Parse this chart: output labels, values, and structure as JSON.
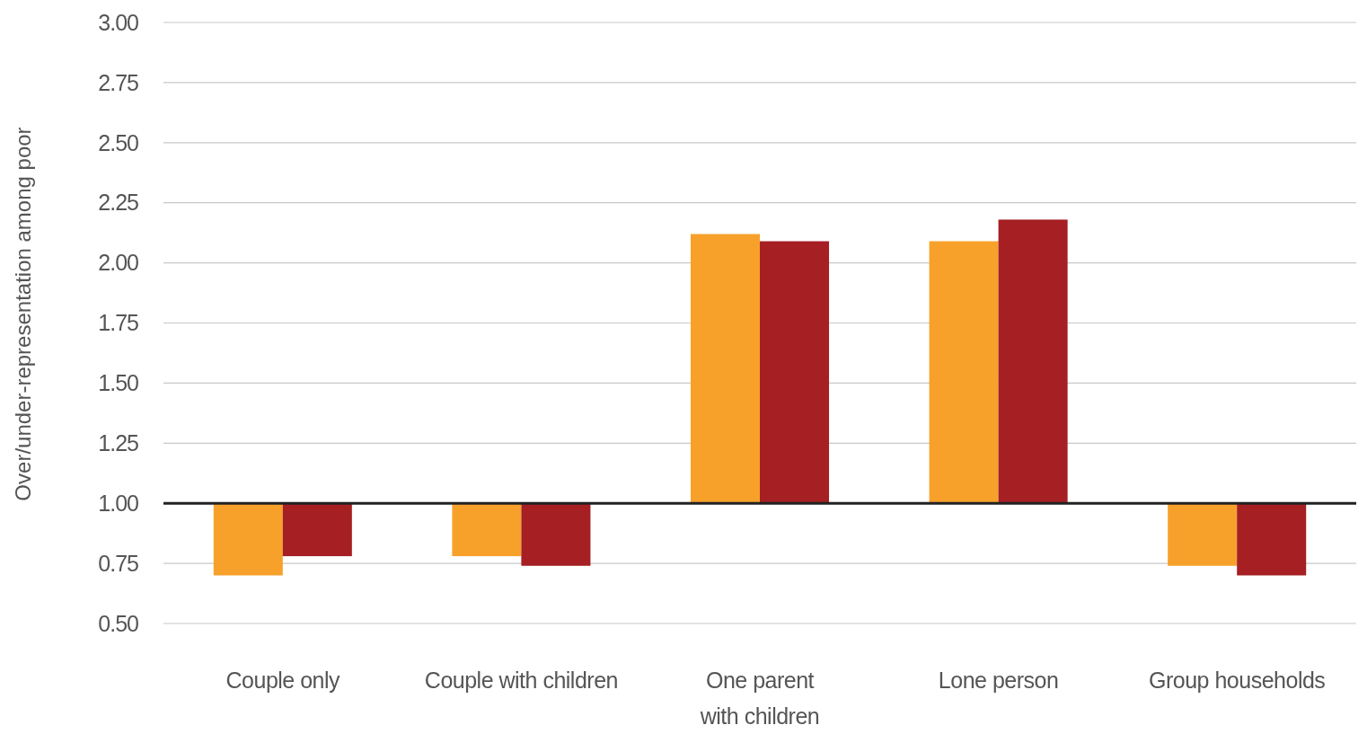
{
  "chart_data": {
    "type": "bar",
    "ylabel": "Over/under-representation among poor",
    "categories": [
      "Couple only",
      "Couple with children",
      "One parent\nwith children",
      "Lone person",
      "Group households"
    ],
    "series": [
      {
        "color": "#f7a12b",
        "base": [
          1,
          1,
          1,
          1,
          1
        ],
        "values": [
          -0.3,
          -0.22,
          1.12,
          1.09,
          -0.26
        ]
      },
      {
        "color": "#a51f23",
        "base": [
          1,
          1,
          1,
          1,
          1
        ],
        "values": [
          -0.22,
          -0.26,
          1.09,
          1.18,
          -0.3
        ]
      }
    ],
    "ylim": [
      0.5,
      3.0
    ],
    "yticks": [
      {
        "value": 0.5,
        "label": "0.50"
      },
      {
        "value": 0.75,
        "label": "0.75"
      },
      {
        "value": 1,
        "label": "1.00"
      },
      {
        "value": 1.25,
        "label": "1.25"
      },
      {
        "value": 1.5,
        "label": "1.50"
      },
      {
        "value": 1.75,
        "label": "1.75"
      },
      {
        "value": 2,
        "label": "2.00"
      },
      {
        "value": 2.25,
        "label": "2.25"
      },
      {
        "value": 2.5,
        "label": "2.50"
      },
      {
        "value": 2.75,
        "label": "2.75"
      },
      {
        "value": 3,
        "label": "3.00"
      }
    ],
    "grid": "y",
    "ref_lines": [
      {
        "axis": "y",
        "value": 1,
        "color": "#222222"
      }
    ]
  }
}
